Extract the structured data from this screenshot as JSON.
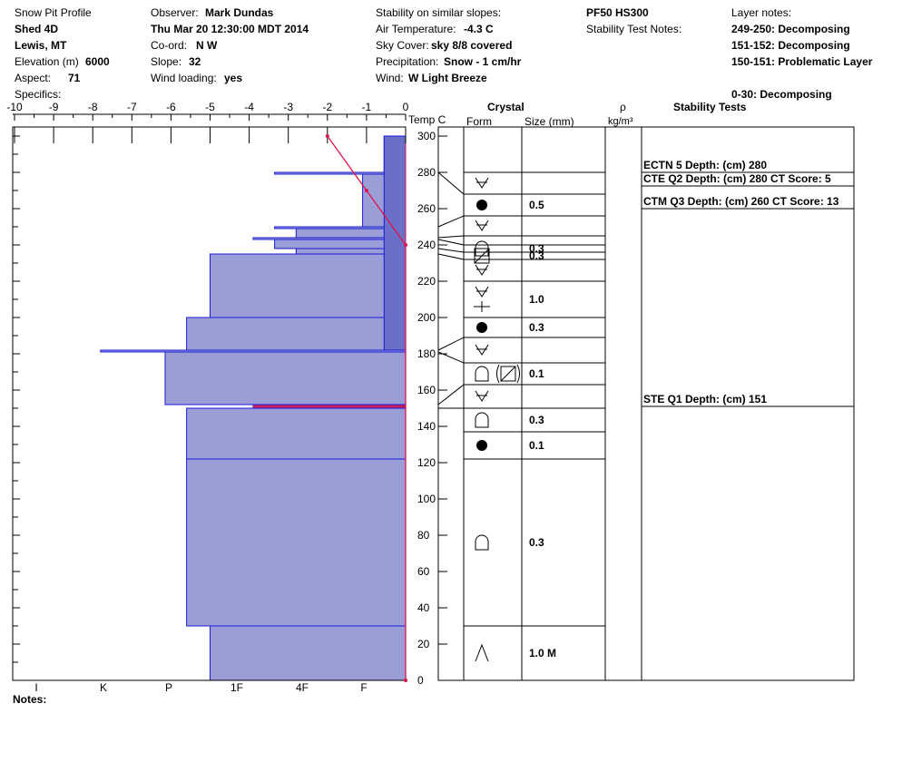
{
  "header": {
    "title": "Snow Pit Profile",
    "location": "Shed 4D",
    "region": "Lewis, MT",
    "elevation_label": "Elevation (m)",
    "elevation_value": "6000",
    "aspect_label": "Aspect:",
    "aspect_value": "71",
    "specifics_label": "Specifics:",
    "observer_label": "Observer:",
    "observer_value": "Mark Dundas",
    "datetime": "Thu Mar 20 12:30:00 MDT 2014",
    "coord_label": "Co-ord:",
    "coord_value": "N  W",
    "slope_label": "Slope:",
    "slope_value": "32",
    "wind_loading_label": "Wind loading:",
    "wind_loading_value": "yes",
    "stability_label": "Stability on similar slopes:",
    "air_temp_label": "Air Temperature:",
    "air_temp_value": "-4.3 C",
    "sky_label": "Sky Cover:",
    "sky_value": "sky 8/8 covered",
    "precip_label": "Precipitation:",
    "precip_value": "Snow - 1 cm/hr",
    "wind_label": "Wind:",
    "wind_value": "W Light Breeze",
    "pf_hs": "PF50 HS300",
    "stability_notes_label": "Stability Test Notes:",
    "layer_notes_label": "Layer notes:",
    "layer_notes": [
      "249-250: Decomposing",
      "151-152: Decomposing",
      "150-151: Problematic Layer",
      "0-30: Decomposing"
    ]
  },
  "columns": {
    "temp": "Temp C",
    "crystal": "Crystal",
    "form": "Form",
    "size": "Size (mm)",
    "rho": "ρ",
    "rho_unit": "kg/m³",
    "stability": "Stability Tests"
  },
  "notes_label": "Notes:",
  "stability_tests": [
    {
      "text": "ECTN 5   Depth: (cm) 280",
      "depth": 280
    },
    {
      "text": "CTE Q2 Depth: (cm) 280 CT Score: 5",
      "depth": 280
    },
    {
      "text": "CTM Q3 Depth: (cm) 260 CT Score: 13",
      "depth": 260
    },
    {
      "text": "STE Q1 Depth: (cm) 151",
      "depth": 151
    }
  ],
  "chart_data": {
    "type": "snow_profile",
    "x_temp_ticks": [
      "-10",
      "-9",
      "-8",
      "-7",
      "-6",
      "-5",
      "-4",
      "-3",
      "-2",
      "-1",
      "0"
    ],
    "hardness_ticks": [
      "I",
      "K",
      "P",
      "1F",
      "4F",
      "F"
    ],
    "y_ticks": [
      "0",
      "20",
      "40",
      "60",
      "80",
      "100",
      "120",
      "140",
      "160",
      "180",
      "200",
      "220",
      "240",
      "260",
      "280",
      "300"
    ],
    "ylim": [
      0,
      300
    ],
    "temp_profile": [
      {
        "height": 300,
        "temp": -2.0
      },
      {
        "height": 270,
        "temp": -1.0
      },
      {
        "height": 240,
        "temp": 0.0
      },
      {
        "height": 0,
        "temp": 0.0
      }
    ],
    "layers": [
      {
        "top": 300,
        "bottom": 280,
        "hardness": -0.55
      },
      {
        "top": 280,
        "bottom": 279,
        "hardness": -3.35
      },
      {
        "top": 279,
        "bottom": 250,
        "hardness": -1.1
      },
      {
        "top": 250,
        "bottom": 249,
        "hardness": -3.35
      },
      {
        "top": 249,
        "bottom": 244,
        "hardness": -2.8
      },
      {
        "top": 244,
        "bottom": 243,
        "hardness": -3.9
      },
      {
        "top": 243,
        "bottom": 238,
        "hardness": -3.35
      },
      {
        "top": 238,
        "bottom": 235,
        "hardness": -2.8
      },
      {
        "top": 235,
        "bottom": 200,
        "hardness": -5.0
      },
      {
        "top": 200,
        "bottom": 182,
        "hardness": -5.6
      },
      {
        "top": 182,
        "bottom": 181,
        "hardness": -7.8
      },
      {
        "top": 181,
        "bottom": 152,
        "hardness": -6.15
      },
      {
        "top": 152,
        "bottom": 150,
        "hardness": -3.9
      },
      {
        "top": 150,
        "bottom": 122,
        "hardness": -5.6
      },
      {
        "top": 122,
        "bottom": 30,
        "hardness": -5.6
      },
      {
        "top": 30,
        "bottom": 0,
        "hardness": -5.0
      }
    ],
    "inner_layer": {
      "top": 300,
      "bottom": 182,
      "hardness": -0.55
    },
    "problem_layer": {
      "height": 151
    },
    "crystal_rows": [
      {
        "top": 300,
        "bottom": 280,
        "forms": [],
        "size": ""
      },
      {
        "top": 280,
        "bottom": 268,
        "forms": [
          "decomp"
        ],
        "size": ""
      },
      {
        "top": 268,
        "bottom": 256,
        "forms": [
          "rounded"
        ],
        "size": "0.5"
      },
      {
        "top": 256,
        "bottom": 245,
        "forms": [
          "decomp"
        ],
        "size": ""
      },
      {
        "top": 245,
        "bottom": 240,
        "forms": [],
        "size": ""
      },
      {
        "top": 240,
        "bottom": 236,
        "forms": [
          "faceted"
        ],
        "size": "0.3"
      },
      {
        "top": 236,
        "bottom": 232,
        "forms": [
          "facet-square"
        ],
        "size": "0.3"
      },
      {
        "top": 232,
        "bottom": 220,
        "forms": [
          "decomp"
        ],
        "size": ""
      },
      {
        "top": 220,
        "bottom": 200,
        "forms": [
          "decomp",
          "rimed"
        ],
        "size": "1.0"
      },
      {
        "top": 200,
        "bottom": 189,
        "forms": [
          "rounded"
        ],
        "size": "0.3"
      },
      {
        "top": 189,
        "bottom": 175,
        "forms": [
          "decomp"
        ],
        "size": ""
      },
      {
        "top": 175,
        "bottom": 163,
        "forms": [
          "faceted",
          "paren-square"
        ],
        "size": "0.1"
      },
      {
        "top": 163,
        "bottom": 150,
        "forms": [
          "decomp"
        ],
        "size": ""
      },
      {
        "top": 150,
        "bottom": 137,
        "forms": [
          "faceted"
        ],
        "size": "0.3"
      },
      {
        "top": 137,
        "bottom": 122,
        "forms": [
          "rounded"
        ],
        "size": "0.1"
      },
      {
        "top": 122,
        "bottom": 30,
        "forms": [
          "faceted"
        ],
        "size": "0.3"
      },
      {
        "top": 30,
        "bottom": 0,
        "forms": [
          "depth-hoar"
        ],
        "size": "1.0 M"
      }
    ]
  }
}
